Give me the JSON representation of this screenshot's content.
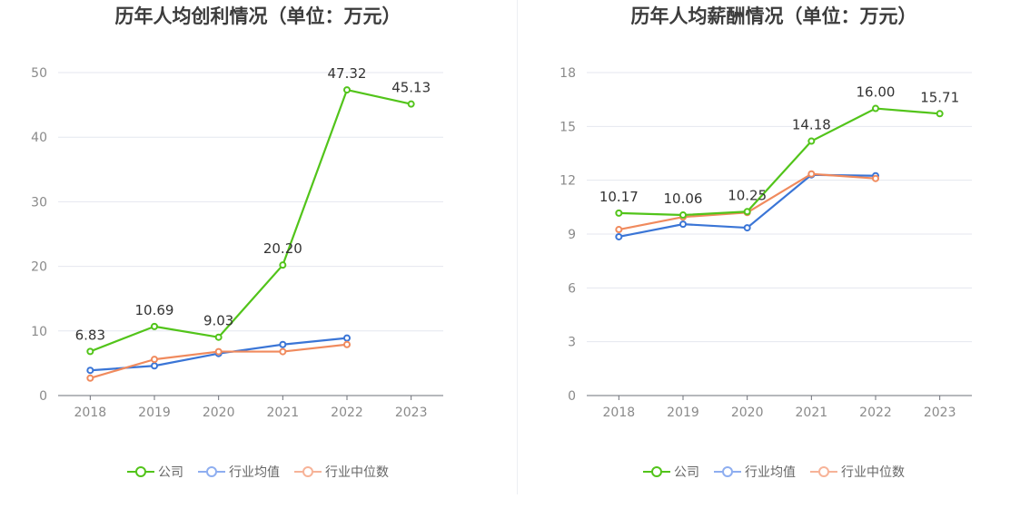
{
  "chart_data": [
    {
      "type": "line",
      "title": "历年人均创利情况（单位：万元）",
      "categories": [
        "2018",
        "2019",
        "2020",
        "2021",
        "2022",
        "2023"
      ],
      "ylim": [
        0,
        50
      ],
      "yticks": [
        0,
        10,
        20,
        30,
        40,
        50
      ],
      "grid": true,
      "legend_position": "bottom",
      "series": [
        {
          "name": "公司",
          "color": "#52c41a",
          "values": [
            6.83,
            10.69,
            9.03,
            20.2,
            47.32,
            45.13
          ],
          "labels": [
            "6.83",
            "10.69",
            "9.03",
            "20.20",
            "47.32",
            "45.13"
          ]
        },
        {
          "name": "行业均值",
          "color": "#3a75d6",
          "values": [
            3.9,
            4.6,
            6.5,
            7.9,
            8.9,
            null
          ]
        },
        {
          "name": "行业中位数",
          "color": "#f08a5d",
          "values": [
            2.7,
            5.6,
            6.8,
            6.8,
            7.9,
            null
          ]
        }
      ]
    },
    {
      "type": "line",
      "title": "历年人均薪酬情况（单位：万元）",
      "categories": [
        "2018",
        "2019",
        "2020",
        "2021",
        "2022",
        "2023"
      ],
      "ylim": [
        0,
        18
      ],
      "yticks": [
        0,
        3,
        6,
        9,
        12,
        15,
        18
      ],
      "grid": true,
      "legend_position": "bottom",
      "series": [
        {
          "name": "公司",
          "color": "#52c41a",
          "values": [
            10.17,
            10.06,
            10.25,
            14.18,
            16.0,
            15.71
          ],
          "labels": [
            "10.17",
            "10.06",
            "10.25",
            "14.18",
            "16.00",
            "15.71"
          ]
        },
        {
          "name": "行业均值",
          "color": "#3a75d6",
          "values": [
            8.85,
            9.55,
            9.35,
            12.3,
            12.25,
            null
          ]
        },
        {
          "name": "行业中位数",
          "color": "#f08a5d",
          "values": [
            9.25,
            9.95,
            10.2,
            12.35,
            12.1,
            null
          ]
        }
      ]
    }
  ],
  "legend_colors": {
    "公司": "#52c41a",
    "行业均值": "#8eaef0",
    "行业中位数": "#f7b398"
  }
}
